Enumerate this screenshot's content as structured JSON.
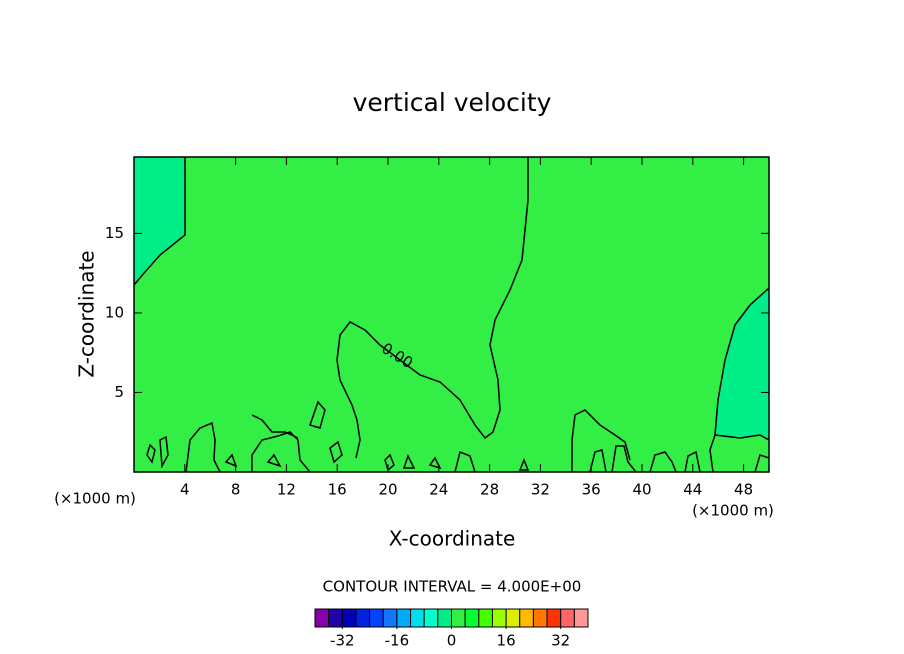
{
  "chart_data": {
    "type": "contour",
    "title": "vertical velocity",
    "x_label": "X-coordinate",
    "y_label": "Z-coordinate",
    "x_unit": "(×1000 m)",
    "y_unit": "(×1000 m)",
    "xlim": [
      0,
      50
    ],
    "xticks": [
      4,
      8,
      12,
      16,
      20,
      24,
      28,
      32,
      36,
      40,
      44,
      48
    ],
    "ylim": [
      0,
      19.8
    ],
    "yticks": [
      5,
      10,
      15
    ],
    "contour_lines": [
      {
        "level": 0,
        "label": "0.00"
      }
    ],
    "contour_interval_label": "CONTOUR INTERVAL = 4.000E+00",
    "colorbar": {
      "lim": [
        -40,
        40
      ],
      "ticks": [
        -32,
        -16,
        0,
        16,
        32
      ],
      "colors": [
        "#8800aa",
        "#2200aa",
        "#0000bb",
        "#0022dd",
        "#0044ff",
        "#1177ff",
        "#00aaff",
        "#00ddee",
        "#00ffcc",
        "#00ee88",
        "#33ee44",
        "#00ff33",
        "#44ff00",
        "#99ff00",
        "#ddee00",
        "#ffbb00",
        "#ff7700",
        "#ff3300",
        "#ff6666",
        "#ff9999"
      ]
    }
  }
}
